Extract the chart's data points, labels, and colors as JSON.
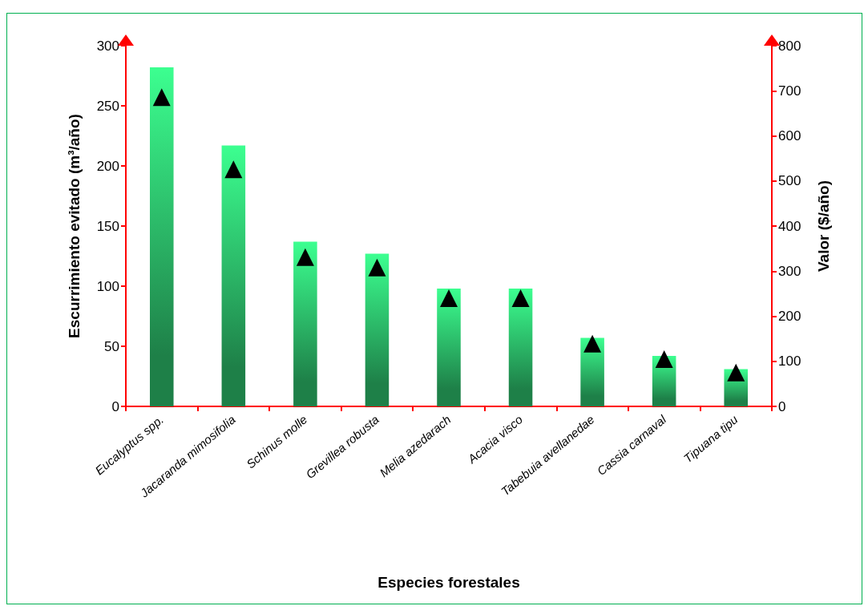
{
  "chart_data": {
    "type": "bar",
    "xlabel": "Especies forestales",
    "ylabel": "Escurrimiento evitado (m³/año)",
    "y2label": "Valor ($/año)",
    "categories": [
      "Eucalyptus spp.",
      "Jacaranda mimosifolia",
      "Schinus molle",
      "Grevillea robusta",
      "Melia azedarach",
      "Acacia visco",
      "Tabebuia avellanedae",
      "Cassia carnaval",
      "Tipuana tipu"
    ],
    "series": [
      {
        "color": "#3cff90",
        "values": [
          282,
          217,
          137,
          127,
          98,
          98,
          57,
          42,
          31
        ]
      },
      {
        "type": "scatter",
        "axis": "y2",
        "color": "#000000",
        "marker": "triangle",
        "values": [
          686,
          526,
          331,
          308,
          240,
          240,
          139,
          105,
          75
        ]
      }
    ],
    "ylim": [
      0,
      300
    ],
    "yticks": [
      0,
      50,
      100,
      150,
      200,
      250,
      300
    ],
    "y2lim": [
      0,
      800
    ],
    "y2ticks": [
      0,
      100,
      200,
      300,
      400,
      500,
      600,
      700,
      800
    ]
  }
}
